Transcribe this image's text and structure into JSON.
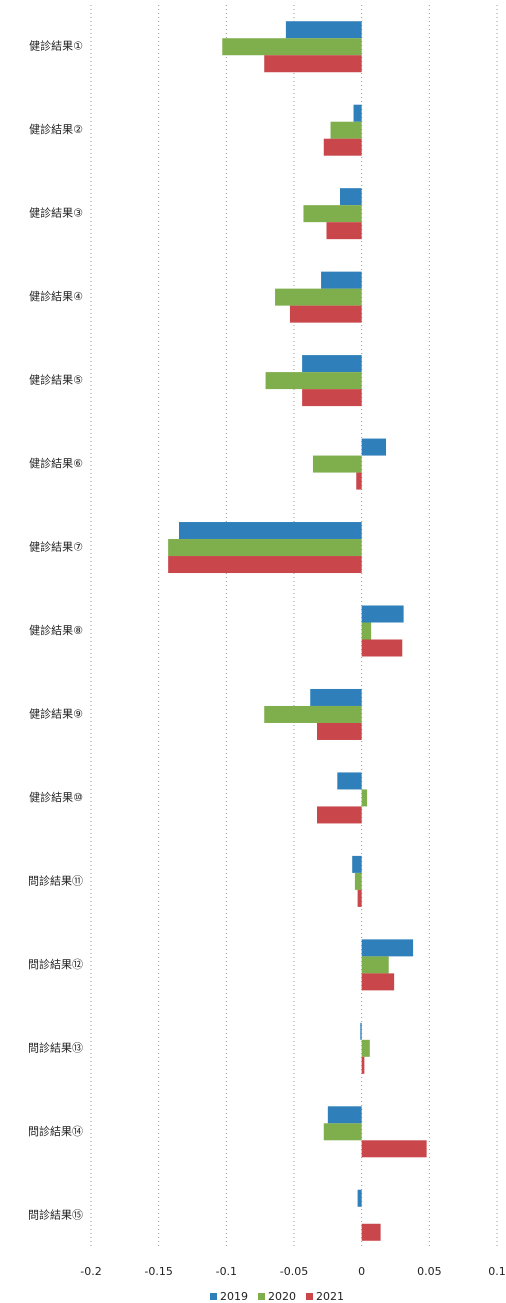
{
  "chart_data": {
    "type": "hbar",
    "categories": [
      "健診結果①",
      "健診結果②",
      "健診結果③",
      "健診結果④",
      "健診結果⑤",
      "健診結果⑥",
      "健診結果⑦",
      "健診結果⑧",
      "健診結果⑨",
      "健診結果⑩",
      "問診結果⑪",
      "問診結果⑫",
      "問診結果⑬",
      "問診結果⑭",
      "問診結果⑮"
    ],
    "series": [
      {
        "name": "2019",
        "color": "#2f7fba",
        "values": [
          -0.056,
          -0.006,
          -0.016,
          -0.03,
          -0.044,
          0.018,
          -0.135,
          0.031,
          -0.038,
          -0.018,
          -0.007,
          0.038,
          -0.001,
          -0.025,
          -0.003
        ]
      },
      {
        "name": "2020",
        "color": "#7fae4c",
        "values": [
          -0.103,
          -0.023,
          -0.043,
          -0.064,
          -0.071,
          -0.036,
          -0.143,
          0.007,
          -0.072,
          0.004,
          -0.005,
          0.02,
          0.006,
          -0.028,
          0
        ]
      },
      {
        "name": "2021",
        "color": "#c9474b",
        "values": [
          -0.072,
          -0.028,
          -0.026,
          -0.053,
          -0.044,
          -0.004,
          -0.143,
          0.03,
          -0.033,
          -0.033,
          -0.003,
          0.024,
          0.002,
          0.048,
          0.014
        ]
      }
    ],
    "xlim": [
      -0.2,
      0.1
    ],
    "xticks": [
      -0.2,
      -0.15,
      -0.1,
      -0.05,
      0,
      0.05,
      0.1
    ],
    "grid": true,
    "legend": "bottom"
  }
}
